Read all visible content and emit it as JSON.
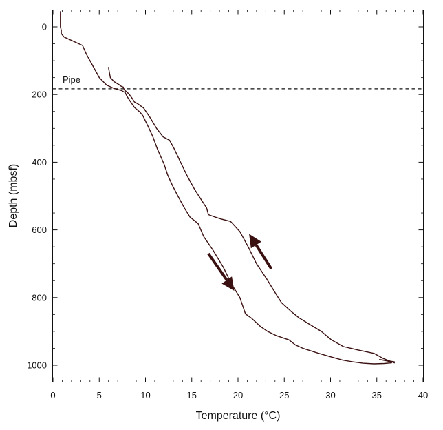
{
  "chart_data": {
    "type": "line",
    "xlabel": "Temperature (°C)",
    "ylabel": "Depth (mbsf)",
    "xlim": [
      0,
      40
    ],
    "ylim": [
      1050,
      -50
    ],
    "y_inverted": true,
    "x_ticks": [
      0,
      5,
      10,
      15,
      20,
      25,
      30,
      35,
      40
    ],
    "y_ticks": [
      0,
      200,
      400,
      600,
      800,
      1000
    ],
    "grid": false,
    "legend": "none",
    "line_color": "#3a1010",
    "annotations": [
      {
        "text": "Pipe",
        "depth": 183,
        "style": "dashed-horizontal-line"
      }
    ],
    "arrows": [
      {
        "direction": "down",
        "from": [
          16.8,
          670
        ],
        "to": [
          19.6,
          780
        ]
      },
      {
        "direction": "up",
        "from": [
          23.6,
          715
        ],
        "to": [
          21.2,
          612
        ]
      }
    ],
    "series": [
      {
        "x": [
          0.8,
          0.8,
          0.9,
          0.9,
          1.2,
          2.0,
          3.2,
          3.6,
          4.4,
          5.0,
          5.8,
          6.6,
          7.4,
          7.8,
          8.0,
          8.3,
          8.8,
          9.4,
          9.7,
          10.3,
          10.8,
          11.3,
          12.0,
          12.4,
          12.9,
          13.5,
          14.2,
          14.8,
          15.4,
          15.7,
          15.9,
          16.3,
          17.3,
          18.4,
          19.3,
          20.2,
          20.8,
          21.5,
          22.4,
          23.2,
          24.1,
          25.5,
          26.2,
          27.0,
          28.5,
          30.0,
          31.3,
          32.4,
          33.5,
          34.7,
          35.8,
          36.6,
          36.2,
          35.3,
          36.9
        ],
        "y": [
          -45,
          0,
          10,
          20,
          30,
          40,
          55,
          80,
          120,
          150,
          172,
          182,
          188,
          194,
          205,
          218,
          238,
          252,
          262,
          295,
          325,
          362,
          405,
          438,
          468,
          500,
          535,
          562,
          575,
          582,
          595,
          620,
          660,
          710,
          760,
          800,
          848,
          862,
          885,
          900,
          912,
          925,
          940,
          950,
          963,
          975,
          985,
          990,
          994,
          996,
          995,
          993,
          988,
          983,
          990
        ]
      },
      {
        "x": [
          36.9,
          35.7,
          34.7,
          33.0,
          31.4,
          30.1,
          29.0,
          27.8,
          26.6,
          25.7,
          24.7,
          24.0,
          23.1,
          22.0,
          21.1,
          20.2,
          19.2,
          18.5,
          18.2,
          17.5,
          16.8,
          16.6,
          15.3,
          14.5,
          13.7,
          13.1,
          12.6,
          11.9,
          11.2,
          10.5,
          9.8,
          9.2,
          8.8,
          8.6,
          8.2,
          7.7,
          7.6,
          7.4,
          7.1,
          6.6,
          6.2,
          6.0
        ],
        "y": [
          993,
          980,
          965,
          955,
          945,
          925,
          900,
          880,
          860,
          840,
          815,
          785,
          745,
          700,
          650,
          605,
          575,
          570,
          568,
          562,
          555,
          535,
          480,
          440,
          395,
          360,
          335,
          325,
          300,
          268,
          240,
          228,
          222,
          213,
          198,
          186,
          178,
          176,
          170,
          162,
          150,
          120
        ]
      }
    ]
  }
}
